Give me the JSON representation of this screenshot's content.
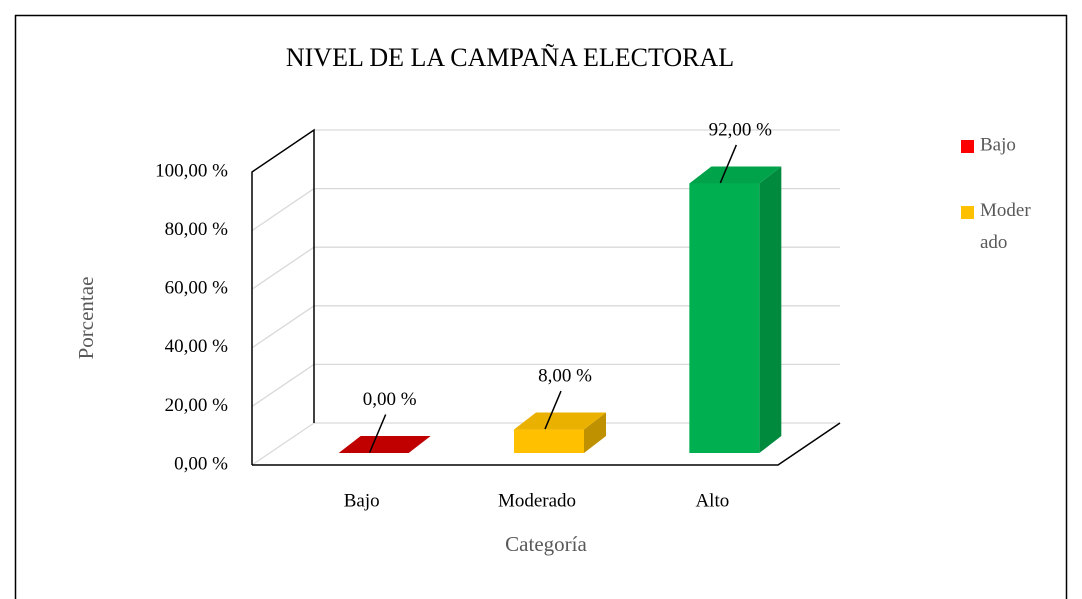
{
  "chart_data": {
    "type": "bar3d",
    "title": "NIVEL DE LA CAMPAÑA ELECTORAL",
    "xlabel": "Categoría",
    "ylabel": "Porcentae",
    "categories": [
      "Bajo",
      "Moderado",
      "Alto"
    ],
    "values": [
      0,
      8,
      92
    ],
    "value_labels": [
      "0,00 %",
      "8,00 %",
      "92,00 %"
    ],
    "colors": [
      "#ff0000",
      "#ffc000",
      "#00b050"
    ],
    "side_colors": [
      "#c00000",
      "#bf9000",
      "#008a3d"
    ],
    "ylim": [
      0,
      100
    ],
    "yticks": [
      {
        "value": 0,
        "label": "0,00 %"
      },
      {
        "value": 20,
        "label": "20,00 %"
      },
      {
        "value": 40,
        "label": "40,00 %"
      },
      {
        "value": 60,
        "label": "60,00 %"
      },
      {
        "value": 80,
        "label": "80,00 %"
      },
      {
        "value": 100,
        "label": "100,00 %"
      }
    ],
    "grid": true,
    "legend": "right"
  }
}
